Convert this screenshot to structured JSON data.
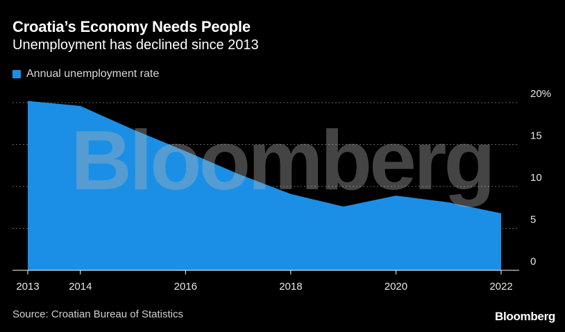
{
  "header": {
    "title": "Croatia’s Economy Needs People",
    "subtitle": "Unemployment has declined since 2013"
  },
  "footer": {
    "source": "Source: Croatian Bureau of Statistics",
    "brand": "Bloomberg"
  },
  "watermark": "Bloomberg",
  "colors": {
    "series": "#1b8fe6",
    "background": "#000000",
    "grid": "#666666",
    "watermark": "rgba(180,180,180,0.38)"
  },
  "chart_data": {
    "type": "area",
    "title": "Croatia’s Economy Needs People",
    "subtitle": "Unemployment has declined since 2013",
    "series": [
      {
        "name": "Annual unemployment rate",
        "x": [
          2013,
          2014,
          2015,
          2016,
          2017,
          2018,
          2019,
          2020,
          2021,
          2022
        ],
        "values": [
          20.2,
          19.6,
          16.8,
          14.2,
          11.5,
          9.1,
          7.6,
          8.9,
          8.1,
          6.8
        ]
      }
    ],
    "xlim": [
      2013,
      2022
    ],
    "ylim": [
      0,
      20
    ],
    "x_ticks": [
      2013,
      2014,
      2016,
      2018,
      2020,
      2022
    ],
    "x_tick_labels": [
      "2013",
      "2014",
      "2016",
      "2018",
      "2020",
      "2022"
    ],
    "y_ticks": [
      0,
      5,
      10,
      15,
      20
    ],
    "y_tick_labels": [
      "0",
      "5",
      "10",
      "15",
      "20%"
    ],
    "grid": true,
    "legend_position": "top-left"
  }
}
